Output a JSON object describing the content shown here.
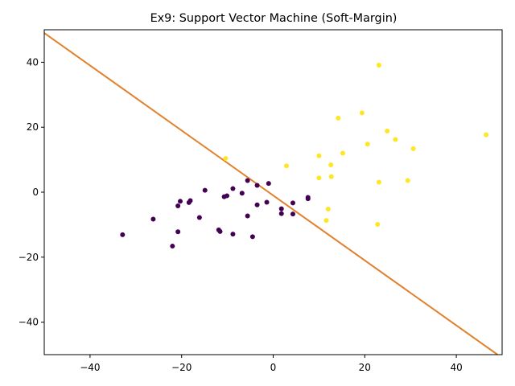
{
  "chart_data": {
    "type": "scatter",
    "title": "Ex9: Support Vector Machine (Soft-Margin)",
    "xlabel": "",
    "ylabel": "",
    "xlim": [
      -50,
      50
    ],
    "ylim": [
      -50,
      50
    ],
    "x_ticks": [
      -40,
      -20,
      0,
      20,
      40
    ],
    "y_ticks": [
      -40,
      -20,
      0,
      20,
      40
    ],
    "grid": false,
    "legend": "none",
    "series": [
      {
        "color": "#440154",
        "points": [
          [
            -32.9,
            -13.1
          ],
          [
            -26.2,
            -8.3
          ],
          [
            -22.0,
            -16.6
          ],
          [
            -20.8,
            -12.2
          ],
          [
            -20.3,
            -2.8
          ],
          [
            -20.8,
            -4.2
          ],
          [
            -18.1,
            -2.6
          ],
          [
            -18.4,
            -3.2
          ],
          [
            -16.1,
            -7.8
          ],
          [
            -14.9,
            0.6
          ],
          [
            -11.9,
            -11.6
          ],
          [
            -11.6,
            -12.1
          ],
          [
            -10.7,
            -1.4
          ],
          [
            -10.1,
            -1.1
          ],
          [
            -8.8,
            1.1
          ],
          [
            -8.8,
            -12.9
          ],
          [
            -6.8,
            -0.3
          ],
          [
            -5.6,
            3.6
          ],
          [
            -5.6,
            -7.3
          ],
          [
            -4.5,
            -13.7
          ],
          [
            -3.5,
            -3.9
          ],
          [
            -3.5,
            2.1
          ],
          [
            -1.4,
            -3.1
          ],
          [
            -1.0,
            2.7
          ],
          [
            1.8,
            -6.6
          ],
          [
            1.8,
            -5.1
          ],
          [
            4.3,
            -3.3
          ],
          [
            4.3,
            -6.7
          ],
          [
            7.6,
            -1.6
          ],
          [
            7.6,
            -2.0
          ]
        ]
      },
      {
        "color": "#fde725",
        "points": [
          [
            -10.4,
            10.4
          ],
          [
            2.9,
            8.1
          ],
          [
            10.0,
            11.2
          ],
          [
            10.0,
            4.4
          ],
          [
            11.6,
            -8.7
          ],
          [
            12.0,
            -5.2
          ],
          [
            12.6,
            8.4
          ],
          [
            12.7,
            4.8
          ],
          [
            14.2,
            22.8
          ],
          [
            15.2,
            12.0
          ],
          [
            19.4,
            24.4
          ],
          [
            20.6,
            14.8
          ],
          [
            22.8,
            -9.9
          ],
          [
            23.1,
            39.1
          ],
          [
            23.1,
            3.1
          ],
          [
            24.9,
            18.8
          ],
          [
            26.7,
            16.2
          ],
          [
            29.4,
            3.6
          ],
          [
            30.6,
            13.4
          ],
          [
            46.5,
            17.7
          ]
        ]
      }
    ],
    "lines": [
      {
        "color": "#e1812c",
        "points": [
          [
            -50,
            49
          ],
          [
            49,
            -50
          ]
        ]
      }
    ]
  }
}
